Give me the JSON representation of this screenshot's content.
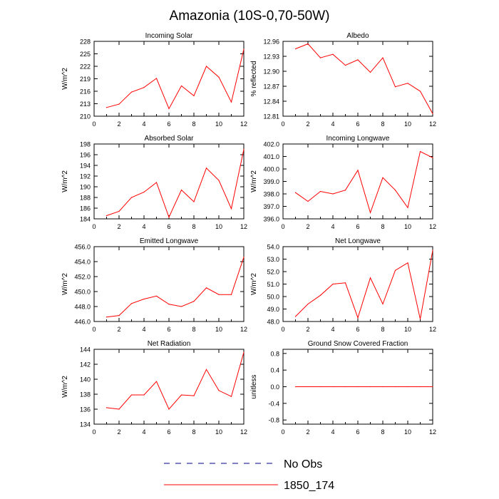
{
  "title": "Amazonia (10S-0,70-50W)",
  "colors": {
    "model": "#ff0000",
    "obs": "#00008b",
    "axis": "#000000"
  },
  "legend": {
    "obs_label": "No Obs",
    "model_label": "1850_174"
  },
  "chart_data": [
    {
      "type": "line",
      "title": "Incoming Solar",
      "ylabel": "W/m^2",
      "xlim": [
        0,
        12
      ],
      "ylim": [
        210,
        228
      ],
      "xticks": [
        "0",
        "2",
        "4",
        "6",
        "8",
        "10",
        "12"
      ],
      "yticks": [
        "210",
        "213",
        "216",
        "219",
        "222",
        "225",
        "228"
      ],
      "series": [
        {
          "name": "1850_174",
          "x": [
            1,
            2,
            3,
            4,
            5,
            6,
            7,
            8,
            9,
            10,
            11,
            12
          ],
          "values": [
            212.1,
            212.9,
            215.8,
            216.9,
            219.1,
            211.8,
            217.3,
            214.9,
            222.0,
            219.4,
            213.4,
            226.1
          ]
        }
      ]
    },
    {
      "type": "line",
      "title": "Albedo",
      "ylabel": "% reflected",
      "xlim": [
        0,
        12
      ],
      "ylim": [
        12.81,
        12.96
      ],
      "xticks": [
        "0",
        "2",
        "4",
        "6",
        "8",
        "10",
        "12"
      ],
      "yticks": [
        "12.81",
        "12.84",
        "12.87",
        "12.90",
        "12.93",
        "12.96"
      ],
      "series": [
        {
          "name": "1850_174",
          "x": [
            1,
            2,
            3,
            4,
            5,
            6,
            7,
            8,
            9,
            10,
            11,
            12
          ],
          "values": [
            12.945,
            12.955,
            12.927,
            12.934,
            12.912,
            12.923,
            12.898,
            12.927,
            12.869,
            12.876,
            12.86,
            12.815
          ]
        }
      ]
    },
    {
      "type": "line",
      "title": "Absorbed Solar",
      "ylabel": "W/m^2",
      "xlim": [
        0,
        12
      ],
      "ylim": [
        184,
        198
      ],
      "xticks": [
        "0",
        "2",
        "4",
        "6",
        "8",
        "10",
        "12"
      ],
      "yticks": [
        "184",
        "186",
        "188",
        "190",
        "192",
        "194",
        "196",
        "198"
      ],
      "series": [
        {
          "name": "1850_174",
          "x": [
            1,
            2,
            3,
            4,
            5,
            6,
            7,
            8,
            9,
            10,
            11,
            12
          ],
          "values": [
            184.6,
            185.4,
            188.0,
            189.0,
            190.8,
            184.3,
            189.4,
            187.2,
            193.5,
            191.2,
            185.9,
            197.0
          ]
        }
      ]
    },
    {
      "type": "line",
      "title": "Incoming Longwave",
      "ylabel": "W/m^2",
      "xlim": [
        0,
        12
      ],
      "ylim": [
        396.0,
        402.0
      ],
      "xticks": [
        "0",
        "2",
        "4",
        "6",
        "8",
        "10",
        "12"
      ],
      "yticks": [
        "396.0",
        "397.0",
        "398.0",
        "399.0",
        "400.0",
        "401.0",
        "402.0"
      ],
      "series": [
        {
          "name": "1850_174",
          "x": [
            1,
            2,
            3,
            4,
            5,
            6,
            7,
            8,
            9,
            10,
            11,
            12
          ],
          "values": [
            398.1,
            397.4,
            398.2,
            398.0,
            398.3,
            399.9,
            396.5,
            399.3,
            398.3,
            396.9,
            401.4,
            400.9
          ]
        }
      ]
    },
    {
      "type": "line",
      "title": "Emitted Longwave",
      "ylabel": "W/m^2",
      "xlim": [
        0,
        12
      ],
      "ylim": [
        446.0,
        456.0
      ],
      "xticks": [
        "0",
        "2",
        "4",
        "6",
        "8",
        "10",
        "12"
      ],
      "yticks": [
        "446.0",
        "448.0",
        "450.0",
        "452.0",
        "454.0",
        "456.0"
      ],
      "series": [
        {
          "name": "1850_174",
          "x": [
            1,
            2,
            3,
            4,
            5,
            6,
            7,
            8,
            9,
            10,
            11,
            12
          ],
          "values": [
            446.6,
            446.8,
            448.4,
            449.0,
            449.4,
            448.3,
            448.0,
            448.7,
            450.5,
            449.6,
            449.6,
            454.6
          ]
        }
      ]
    },
    {
      "type": "line",
      "title": "Net Longwave",
      "ylabel": "W/m^2",
      "xlim": [
        0,
        12
      ],
      "ylim": [
        48.0,
        54.0
      ],
      "xticks": [
        "0",
        "2",
        "4",
        "6",
        "8",
        "10",
        "12"
      ],
      "yticks": [
        "48.0",
        "49.0",
        "50.0",
        "51.0",
        "52.0",
        "53.0",
        "54.0"
      ],
      "series": [
        {
          "name": "1850_174",
          "x": [
            1,
            2,
            3,
            4,
            5,
            6,
            7,
            8,
            9,
            10,
            11,
            12
          ],
          "values": [
            48.4,
            49.4,
            50.1,
            51.0,
            51.1,
            48.3,
            51.5,
            49.4,
            52.1,
            52.7,
            48.2,
            53.7
          ]
        }
      ]
    },
    {
      "type": "line",
      "title": "Net Radiation",
      "ylabel": "W/m^2",
      "xlim": [
        0,
        12
      ],
      "ylim": [
        134,
        144
      ],
      "xticks": [
        "0",
        "2",
        "4",
        "6",
        "8",
        "10",
        "12"
      ],
      "yticks": [
        "134",
        "136",
        "138",
        "140",
        "142",
        "144"
      ],
      "series": [
        {
          "name": "1850_174",
          "x": [
            1,
            2,
            3,
            4,
            5,
            6,
            7,
            8,
            9,
            10,
            11,
            12
          ],
          "values": [
            136.2,
            136.0,
            137.9,
            137.9,
            139.7,
            136.0,
            137.9,
            137.8,
            141.3,
            138.5,
            137.7,
            143.6
          ]
        }
      ]
    },
    {
      "type": "line",
      "title": "Ground Snow Covered Fraction",
      "ylabel": "unitless",
      "xlim": [
        0,
        12
      ],
      "ylim": [
        -0.9,
        0.9
      ],
      "xticks": [
        "0",
        "2",
        "4",
        "6",
        "8",
        "10",
        "12"
      ],
      "yticks": [
        "-0.8",
        "-0.4",
        "0.0",
        "0.4",
        "0.8"
      ],
      "ytick_values": [
        -0.8,
        -0.4,
        0.0,
        0.4,
        0.8
      ],
      "series": [
        {
          "name": "1850_174",
          "x": [
            1,
            2,
            3,
            4,
            5,
            6,
            7,
            8,
            9,
            10,
            11,
            12
          ],
          "values": [
            0,
            0,
            0,
            0,
            0,
            0,
            0,
            0,
            0,
            0,
            0,
            0
          ]
        }
      ]
    }
  ]
}
